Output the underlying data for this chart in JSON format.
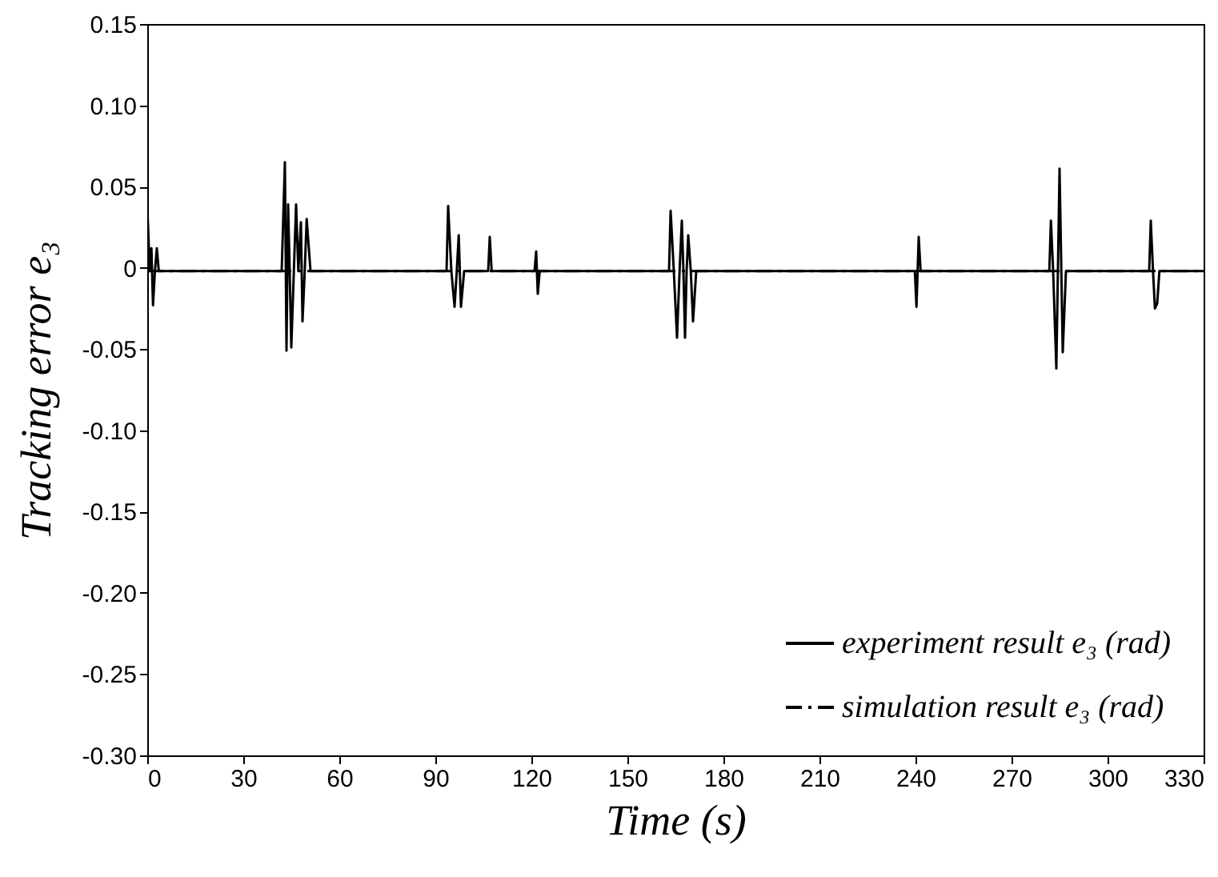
{
  "chart_data": {
    "type": "line",
    "xlabel": "Time (s)",
    "ylabel": "Tracking error e₃",
    "xlim": [
      0,
      330
    ],
    "xticks": [
      0,
      30,
      60,
      90,
      120,
      150,
      180,
      210,
      240,
      270,
      300,
      330
    ],
    "ylim": [
      -0.3,
      0.15
    ],
    "yticks": [
      {
        "value": -0.3,
        "label": "-0.30"
      },
      -0.25,
      {
        "value": -0.2,
        "label": "-0.20"
      },
      -0.15,
      {
        "value": -0.1,
        "label": "-0.10"
      },
      -0.05,
      0,
      0.05,
      {
        "value": 0.1,
        "label": "0.10"
      },
      0.15
    ],
    "legend": "bottom right",
    "series": [
      {
        "name": "experiment result e₃ (rad)",
        "color": "#000000",
        "line_style": "solid",
        "x": [
          0,
          0.8,
          1.3,
          1.8,
          2.4,
          3,
          3.6,
          42,
          43,
          43.5,
          44,
          44.5,
          45,
          45.8,
          46.5,
          47.2,
          48,
          48.5,
          49.2,
          49.8,
          51,
          93.5,
          94,
          95,
          96,
          96.7,
          97.3,
          98,
          99,
          106.5,
          107,
          107.6,
          121,
          121.5,
          122,
          122.6,
          163,
          163.5,
          164.5,
          165.5,
          166.3,
          167,
          167.5,
          168,
          168.5,
          169,
          169.8,
          170.5,
          171.5,
          239.8,
          240.3,
          241,
          241.6,
          281.8,
          282.3,
          283,
          284,
          285,
          286,
          287,
          313,
          313.5,
          314.2,
          314.8,
          315.5,
          316.2,
          330
        ],
        "values": [
          0.038,
          -0.002,
          0.012,
          -0.023,
          -0.002,
          0.012,
          -0.002,
          -0.002,
          0.065,
          -0.051,
          0.039,
          -0.002,
          -0.049,
          -0.002,
          0.039,
          -0.002,
          0.028,
          -0.033,
          -0.002,
          0.03,
          -0.002,
          -0.002,
          0.038,
          -0.002,
          -0.024,
          -0.002,
          0.02,
          -0.024,
          -0.002,
          -0.002,
          0.019,
          -0.002,
          -0.002,
          0.01,
          -0.016,
          -0.002,
          -0.002,
          0.035,
          -0.002,
          -0.043,
          -0.002,
          0.029,
          -0.002,
          -0.043,
          -0.002,
          0.02,
          -0.002,
          -0.033,
          -0.002,
          -0.002,
          -0.024,
          0.019,
          -0.002,
          -0.002,
          0.029,
          -0.002,
          -0.062,
          0.061,
          -0.052,
          -0.002,
          -0.002,
          0.029,
          -0.002,
          -0.025,
          -0.022,
          -0.002,
          -0.002
        ]
      },
      {
        "name": "simulation result e₃ (rad)",
        "color": "#000000",
        "line_style": "dashed",
        "x": [
          0,
          330
        ],
        "values": [
          -0.002,
          -0.002
        ]
      }
    ]
  }
}
